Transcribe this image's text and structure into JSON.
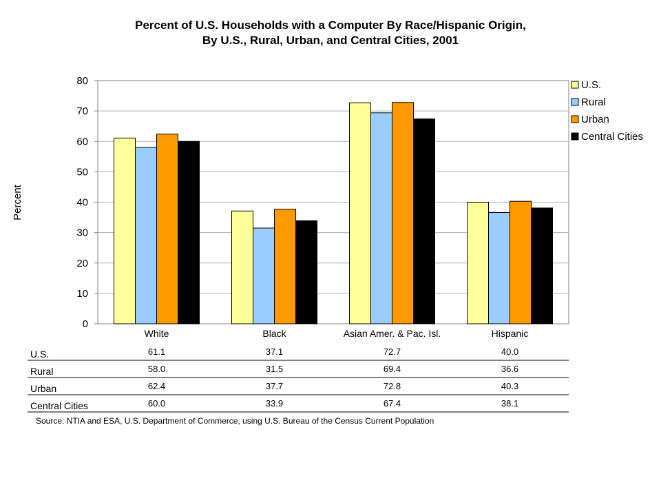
{
  "chart_data": {
    "type": "bar",
    "title": "Percent of U.S. Households with a Computer By Race/Hispanic Origin,",
    "subtitle": "By U.S., Rural, Urban, and Central Cities, 2001",
    "ylabel": "Percent",
    "xlabel": "",
    "ylim": [
      0,
      80
    ],
    "yticks": [
      0,
      10,
      20,
      30,
      40,
      50,
      60,
      70,
      80
    ],
    "grid": true,
    "legend_position": "right",
    "categories": [
      "White",
      "Black",
      "Asian Amer. & Pac. Isl.",
      "Hispanic"
    ],
    "series": [
      {
        "name": "U.S.",
        "color": "#ffff99",
        "values": [
          61.1,
          37.1,
          72.7,
          40.0
        ]
      },
      {
        "name": "Rural",
        "color": "#99ccff",
        "values": [
          58.0,
          31.5,
          69.4,
          36.6
        ]
      },
      {
        "name": "Urban",
        "color": "#ff9900",
        "values": [
          62.4,
          37.7,
          72.8,
          40.3
        ]
      },
      {
        "name": "Central Cities",
        "color": "#000000",
        "values": [
          60.0,
          33.9,
          67.4,
          38.1
        ]
      }
    ],
    "table": {
      "rows": [
        {
          "label": "U.S.",
          "values": [
            "61.1",
            "37.1",
            "72.7",
            "40.0"
          ]
        },
        {
          "label": "Rural",
          "values": [
            "58.0",
            "31.5",
            "69.4",
            "36.6"
          ]
        },
        {
          "label": "Urban",
          "values": [
            "62.4",
            "37.7",
            "72.8",
            "40.3"
          ]
        },
        {
          "label": "Central Cities",
          "values": [
            "60.0",
            "33.9",
            "67.4",
            "38.1"
          ]
        }
      ]
    }
  },
  "source": "Source:  NTIA and ESA, U.S. Department of Commerce, using U.S. Bureau of the Census Current Population"
}
